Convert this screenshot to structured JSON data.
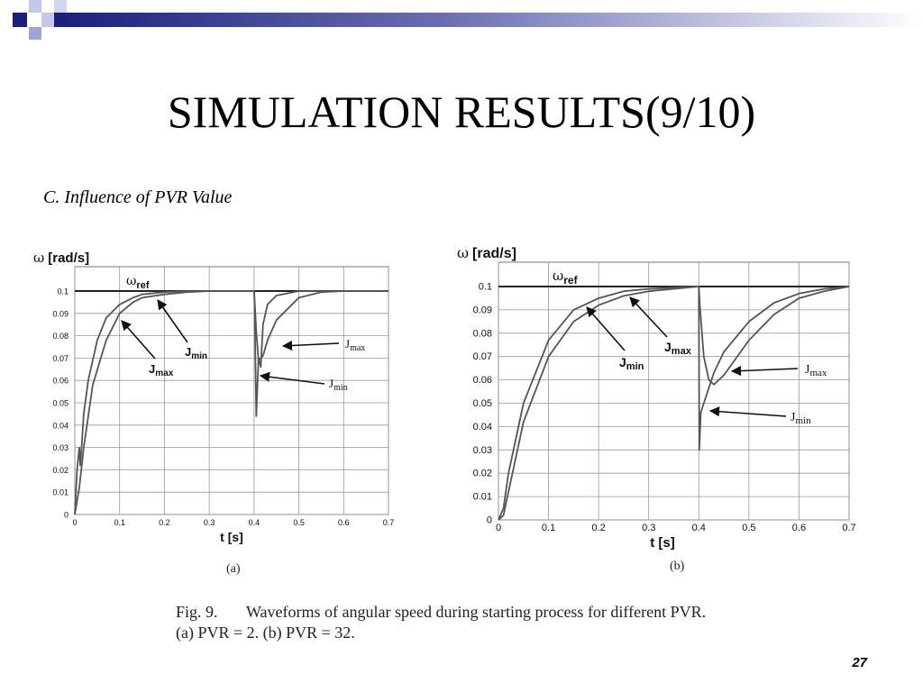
{
  "slide": {
    "title": "SIMULATION RESULTS(9/10)",
    "subtitle": "C. Influence of PVR Value",
    "page_number": "27",
    "caption_fig": "Fig. 9.",
    "caption_text": "Waveforms of angular speed during starting process for different PVR.",
    "caption_line2": "(a) PVR = 2. (b) PVR = 32.",
    "colors": {
      "deco_dark": "#1a1f7a",
      "deco_light": "#9fa3d6",
      "curve": "#555555",
      "grid": "#888888"
    }
  },
  "chart_data": [
    {
      "type": "line",
      "sublabel": "(a)",
      "ylabel_symbol": "ω",
      "ylabel": "[rad/s]",
      "xlabel": "t [s]",
      "xlim": [
        0,
        0.7
      ],
      "ylim": [
        0,
        0.1
      ],
      "xticks": [
        "0",
        "0.1",
        "0.2",
        "0.3",
        "0.4",
        "0.5",
        "0.6",
        "0.7"
      ],
      "yticks": [
        "0",
        "0.01",
        "0.02",
        "0.03",
        "0.04",
        "0.05",
        "0.06",
        "0.07",
        "0.08",
        "0.09",
        "0.1"
      ],
      "reference": {
        "name": "ωref",
        "value": 0.1
      },
      "series": [
        {
          "name": "Jmin",
          "x": [
            0,
            0.005,
            0.01,
            0.012,
            0.015,
            0.02,
            0.03,
            0.05,
            0.07,
            0.1,
            0.13,
            0.15,
            0.2,
            0.25,
            0.3,
            0.35,
            0.4,
            0.401,
            0.405,
            0.41,
            0.415,
            0.42,
            0.43,
            0.45,
            0.5,
            0.55,
            0.6,
            0.65,
            0.7
          ],
          "y": [
            0,
            0.02,
            0.03,
            0.022,
            0.03,
            0.045,
            0.06,
            0.078,
            0.088,
            0.094,
            0.097,
            0.0985,
            0.0995,
            0.1,
            0.1,
            0.1,
            0.1,
            0.095,
            0.044,
            0.07,
            0.066,
            0.085,
            0.094,
            0.098,
            0.1,
            0.1,
            0.1,
            0.1,
            0.1
          ]
        },
        {
          "name": "Jmax",
          "x": [
            0,
            0.01,
            0.02,
            0.04,
            0.07,
            0.1,
            0.13,
            0.15,
            0.2,
            0.25,
            0.3,
            0.35,
            0.4,
            0.402,
            0.405,
            0.41,
            0.42,
            0.43,
            0.45,
            0.5,
            0.55,
            0.6,
            0.65,
            0.7
          ],
          "y": [
            0,
            0.012,
            0.03,
            0.058,
            0.078,
            0.09,
            0.095,
            0.097,
            0.0985,
            0.0995,
            0.1,
            0.1,
            0.1,
            0.093,
            0.082,
            0.069,
            0.071,
            0.078,
            0.087,
            0.097,
            0.0995,
            0.1,
            0.1,
            0.1
          ]
        }
      ],
      "annotations": [
        {
          "base": "J",
          "sub": "min",
          "bold": true
        },
        {
          "base": "J",
          "sub": "max",
          "bold": true
        },
        {
          "base": "J",
          "sub": "max",
          "bold": false
        },
        {
          "base": "J",
          "sub": "min",
          "bold": false
        }
      ]
    },
    {
      "type": "line",
      "sublabel": "(b)",
      "ylabel_symbol": "ω",
      "ylabel": "[rad/s]",
      "xlabel": "t [s]",
      "xlim": [
        0,
        0.7
      ],
      "ylim": [
        0,
        0.1
      ],
      "xticks": [
        "0",
        "0.1",
        "0.2",
        "0.3",
        "0.4",
        "0.5",
        "0.6",
        "0.7"
      ],
      "yticks": [
        "0",
        "0.01",
        "0.02",
        "0.03",
        "0.04",
        "0.05",
        "0.06",
        "0.07",
        "0.08",
        "0.09",
        "0.1"
      ],
      "reference": {
        "name": "ωref",
        "value": 0.1
      },
      "series": [
        {
          "name": "Jmin",
          "x": [
            0,
            0.01,
            0.02,
            0.05,
            0.1,
            0.15,
            0.2,
            0.25,
            0.3,
            0.35,
            0.4,
            0.401,
            0.404,
            0.41,
            0.43,
            0.45,
            0.5,
            0.55,
            0.6,
            0.65,
            0.7
          ],
          "y": [
            0,
            0.005,
            0.02,
            0.05,
            0.077,
            0.09,
            0.095,
            0.098,
            0.099,
            0.0995,
            0.1,
            0.03,
            0.046,
            0.05,
            0.063,
            0.072,
            0.085,
            0.093,
            0.097,
            0.099,
            0.1
          ]
        },
        {
          "name": "Jmax",
          "x": [
            0,
            0.01,
            0.02,
            0.05,
            0.1,
            0.15,
            0.2,
            0.25,
            0.3,
            0.35,
            0.4,
            0.402,
            0.41,
            0.42,
            0.43,
            0.45,
            0.5,
            0.55,
            0.6,
            0.65,
            0.7
          ],
          "y": [
            0,
            0.002,
            0.012,
            0.042,
            0.07,
            0.085,
            0.092,
            0.096,
            0.098,
            0.099,
            0.1,
            0.092,
            0.07,
            0.06,
            0.058,
            0.062,
            0.077,
            0.088,
            0.095,
            0.098,
            0.1
          ]
        }
      ],
      "annotations": [
        {
          "base": "J",
          "sub": "min",
          "bold": true
        },
        {
          "base": "J",
          "sub": "max",
          "bold": true
        },
        {
          "base": "J",
          "sub": "max",
          "bold": false
        },
        {
          "base": "J",
          "sub": "min",
          "bold": false
        }
      ]
    }
  ]
}
